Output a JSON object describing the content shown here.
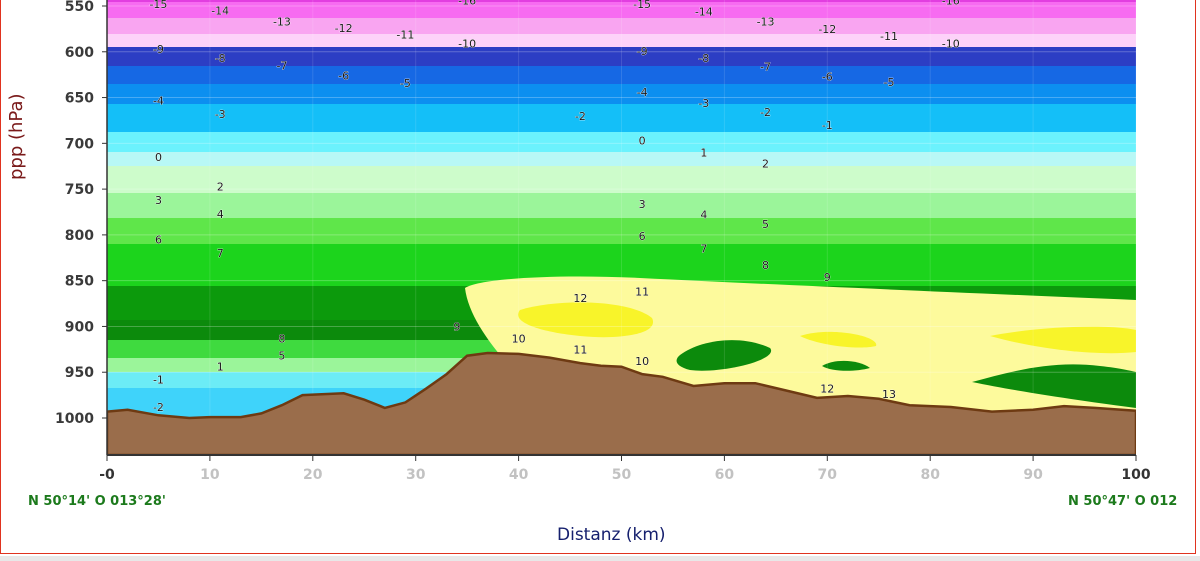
{
  "chart_data": {
    "type": "area",
    "xlabel": "Distanz (km)",
    "ylabel": "ppp (hPa)",
    "x_ticks": [
      "-0",
      "10",
      "20",
      "30",
      "40",
      "50",
      "60",
      "70",
      "80",
      "90",
      "100"
    ],
    "y_ticks": [
      "550",
      "600",
      "650",
      "700",
      "750",
      "800",
      "850",
      "900",
      "950",
      "1000"
    ],
    "xlim": [
      0,
      100
    ],
    "ylim": [
      540,
      1040
    ],
    "y_inverted": true,
    "grid": true,
    "start_label": "N 50°14' O 013°28'",
    "end_label": "N 50°47' O 012",
    "terrain_color": "#9a6d4b",
    "terrain_outline": "#6e3a12",
    "terrain_pressure": [
      [
        0,
        993
      ],
      [
        2,
        991
      ],
      [
        5,
        997
      ],
      [
        8,
        1000
      ],
      [
        10,
        999
      ],
      [
        13,
        999
      ],
      [
        15,
        995
      ],
      [
        17,
        986
      ],
      [
        19,
        975
      ],
      [
        23,
        973
      ],
      [
        25,
        980
      ],
      [
        27,
        989
      ],
      [
        29,
        983
      ],
      [
        31,
        968
      ],
      [
        33,
        952
      ],
      [
        35,
        932
      ],
      [
        37,
        929
      ],
      [
        40,
        930
      ],
      [
        43,
        934
      ],
      [
        46,
        940
      ],
      [
        48,
        943
      ],
      [
        50,
        944
      ],
      [
        52,
        952
      ],
      [
        54,
        955
      ],
      [
        57,
        965
      ],
      [
        60,
        962
      ],
      [
        63,
        962
      ],
      [
        66,
        970
      ],
      [
        69,
        978
      ],
      [
        72,
        976
      ],
      [
        75,
        979
      ],
      [
        78,
        986
      ],
      [
        82,
        988
      ],
      [
        86,
        993
      ],
      [
        90,
        991
      ],
      [
        93,
        987
      ],
      [
        96,
        989
      ],
      [
        100,
        992
      ]
    ],
    "temperature_labels": [
      {
        "text": "-15",
        "x": 5,
        "y": 548
      },
      {
        "text": "-14",
        "x": 11,
        "y": 555
      },
      {
        "text": "-13",
        "x": 17,
        "y": 567
      },
      {
        "text": "-12",
        "x": 23,
        "y": 574
      },
      {
        "text": "-11",
        "x": 29,
        "y": 581
      },
      {
        "text": "-16",
        "x": 35,
        "y": 544
      },
      {
        "text": "-10",
        "x": 35,
        "y": 591
      },
      {
        "text": "-15",
        "x": 52,
        "y": 548
      },
      {
        "text": "-14",
        "x": 58,
        "y": 556
      },
      {
        "text": "-13",
        "x": 64,
        "y": 567
      },
      {
        "text": "-12",
        "x": 70,
        "y": 575
      },
      {
        "text": "-11",
        "x": 76,
        "y": 583
      },
      {
        "text": "-16",
        "x": 82,
        "y": 544
      },
      {
        "text": "-10",
        "x": 82,
        "y": 591
      },
      {
        "text": "-9",
        "x": 5,
        "y": 597
      },
      {
        "text": "-8",
        "x": 11,
        "y": 607
      },
      {
        "text": "-7",
        "x": 17,
        "y": 615
      },
      {
        "text": "-6",
        "x": 23,
        "y": 626
      },
      {
        "text": "-5",
        "x": 29,
        "y": 634
      },
      {
        "text": "-9",
        "x": 52,
        "y": 599
      },
      {
        "text": "-8",
        "x": 58,
        "y": 607
      },
      {
        "text": "-7",
        "x": 64,
        "y": 616
      },
      {
        "text": "-6",
        "x": 70,
        "y": 627
      },
      {
        "text": "-5",
        "x": 76,
        "y": 633
      },
      {
        "text": "-4",
        "x": 5,
        "y": 653
      },
      {
        "text": "-3",
        "x": 11,
        "y": 668
      },
      {
        "text": "-4",
        "x": 52,
        "y": 644
      },
      {
        "text": "-3",
        "x": 58,
        "y": 656
      },
      {
        "text": "-2",
        "x": 46,
        "y": 670
      },
      {
        "text": "-2",
        "x": 64,
        "y": 666
      },
      {
        "text": "-1",
        "x": 70,
        "y": 680
      },
      {
        "text": "0",
        "x": 5,
        "y": 715
      },
      {
        "text": "0",
        "x": 52,
        "y": 697
      },
      {
        "text": "1",
        "x": 58,
        "y": 710
      },
      {
        "text": "2",
        "x": 11,
        "y": 747
      },
      {
        "text": "2",
        "x": 64,
        "y": 722
      },
      {
        "text": "3",
        "x": 5,
        "y": 762
      },
      {
        "text": "3",
        "x": 52,
        "y": 766
      },
      {
        "text": "4",
        "x": 11,
        "y": 777
      },
      {
        "text": "4",
        "x": 58,
        "y": 778
      },
      {
        "text": "5",
        "x": 64,
        "y": 788
      },
      {
        "text": "6",
        "x": 5,
        "y": 805
      },
      {
        "text": "6",
        "x": 52,
        "y": 801
      },
      {
        "text": "7",
        "x": 11,
        "y": 820
      },
      {
        "text": "7",
        "x": 58,
        "y": 815
      },
      {
        "text": "8",
        "x": 64,
        "y": 833
      },
      {
        "text": "9",
        "x": 70,
        "y": 846
      },
      {
        "text": "11",
        "x": 52,
        "y": 862
      },
      {
        "text": "12",
        "x": 46,
        "y": 869
      },
      {
        "text": "9",
        "x": 34,
        "y": 900
      },
      {
        "text": "8",
        "x": 17,
        "y": 913
      },
      {
        "text": "10",
        "x": 40,
        "y": 913
      },
      {
        "text": "11",
        "x": 46,
        "y": 925
      },
      {
        "text": "5",
        "x": 17,
        "y": 932
      },
      {
        "text": "10",
        "x": 52,
        "y": 938
      },
      {
        "text": "1",
        "x": 11,
        "y": 944
      },
      {
        "text": "-1",
        "x": 5,
        "y": 958
      },
      {
        "text": "12",
        "x": 70,
        "y": 968
      },
      {
        "text": "13",
        "x": 76,
        "y": 974
      },
      {
        "text": "-2",
        "x": 5,
        "y": 988
      }
    ]
  }
}
